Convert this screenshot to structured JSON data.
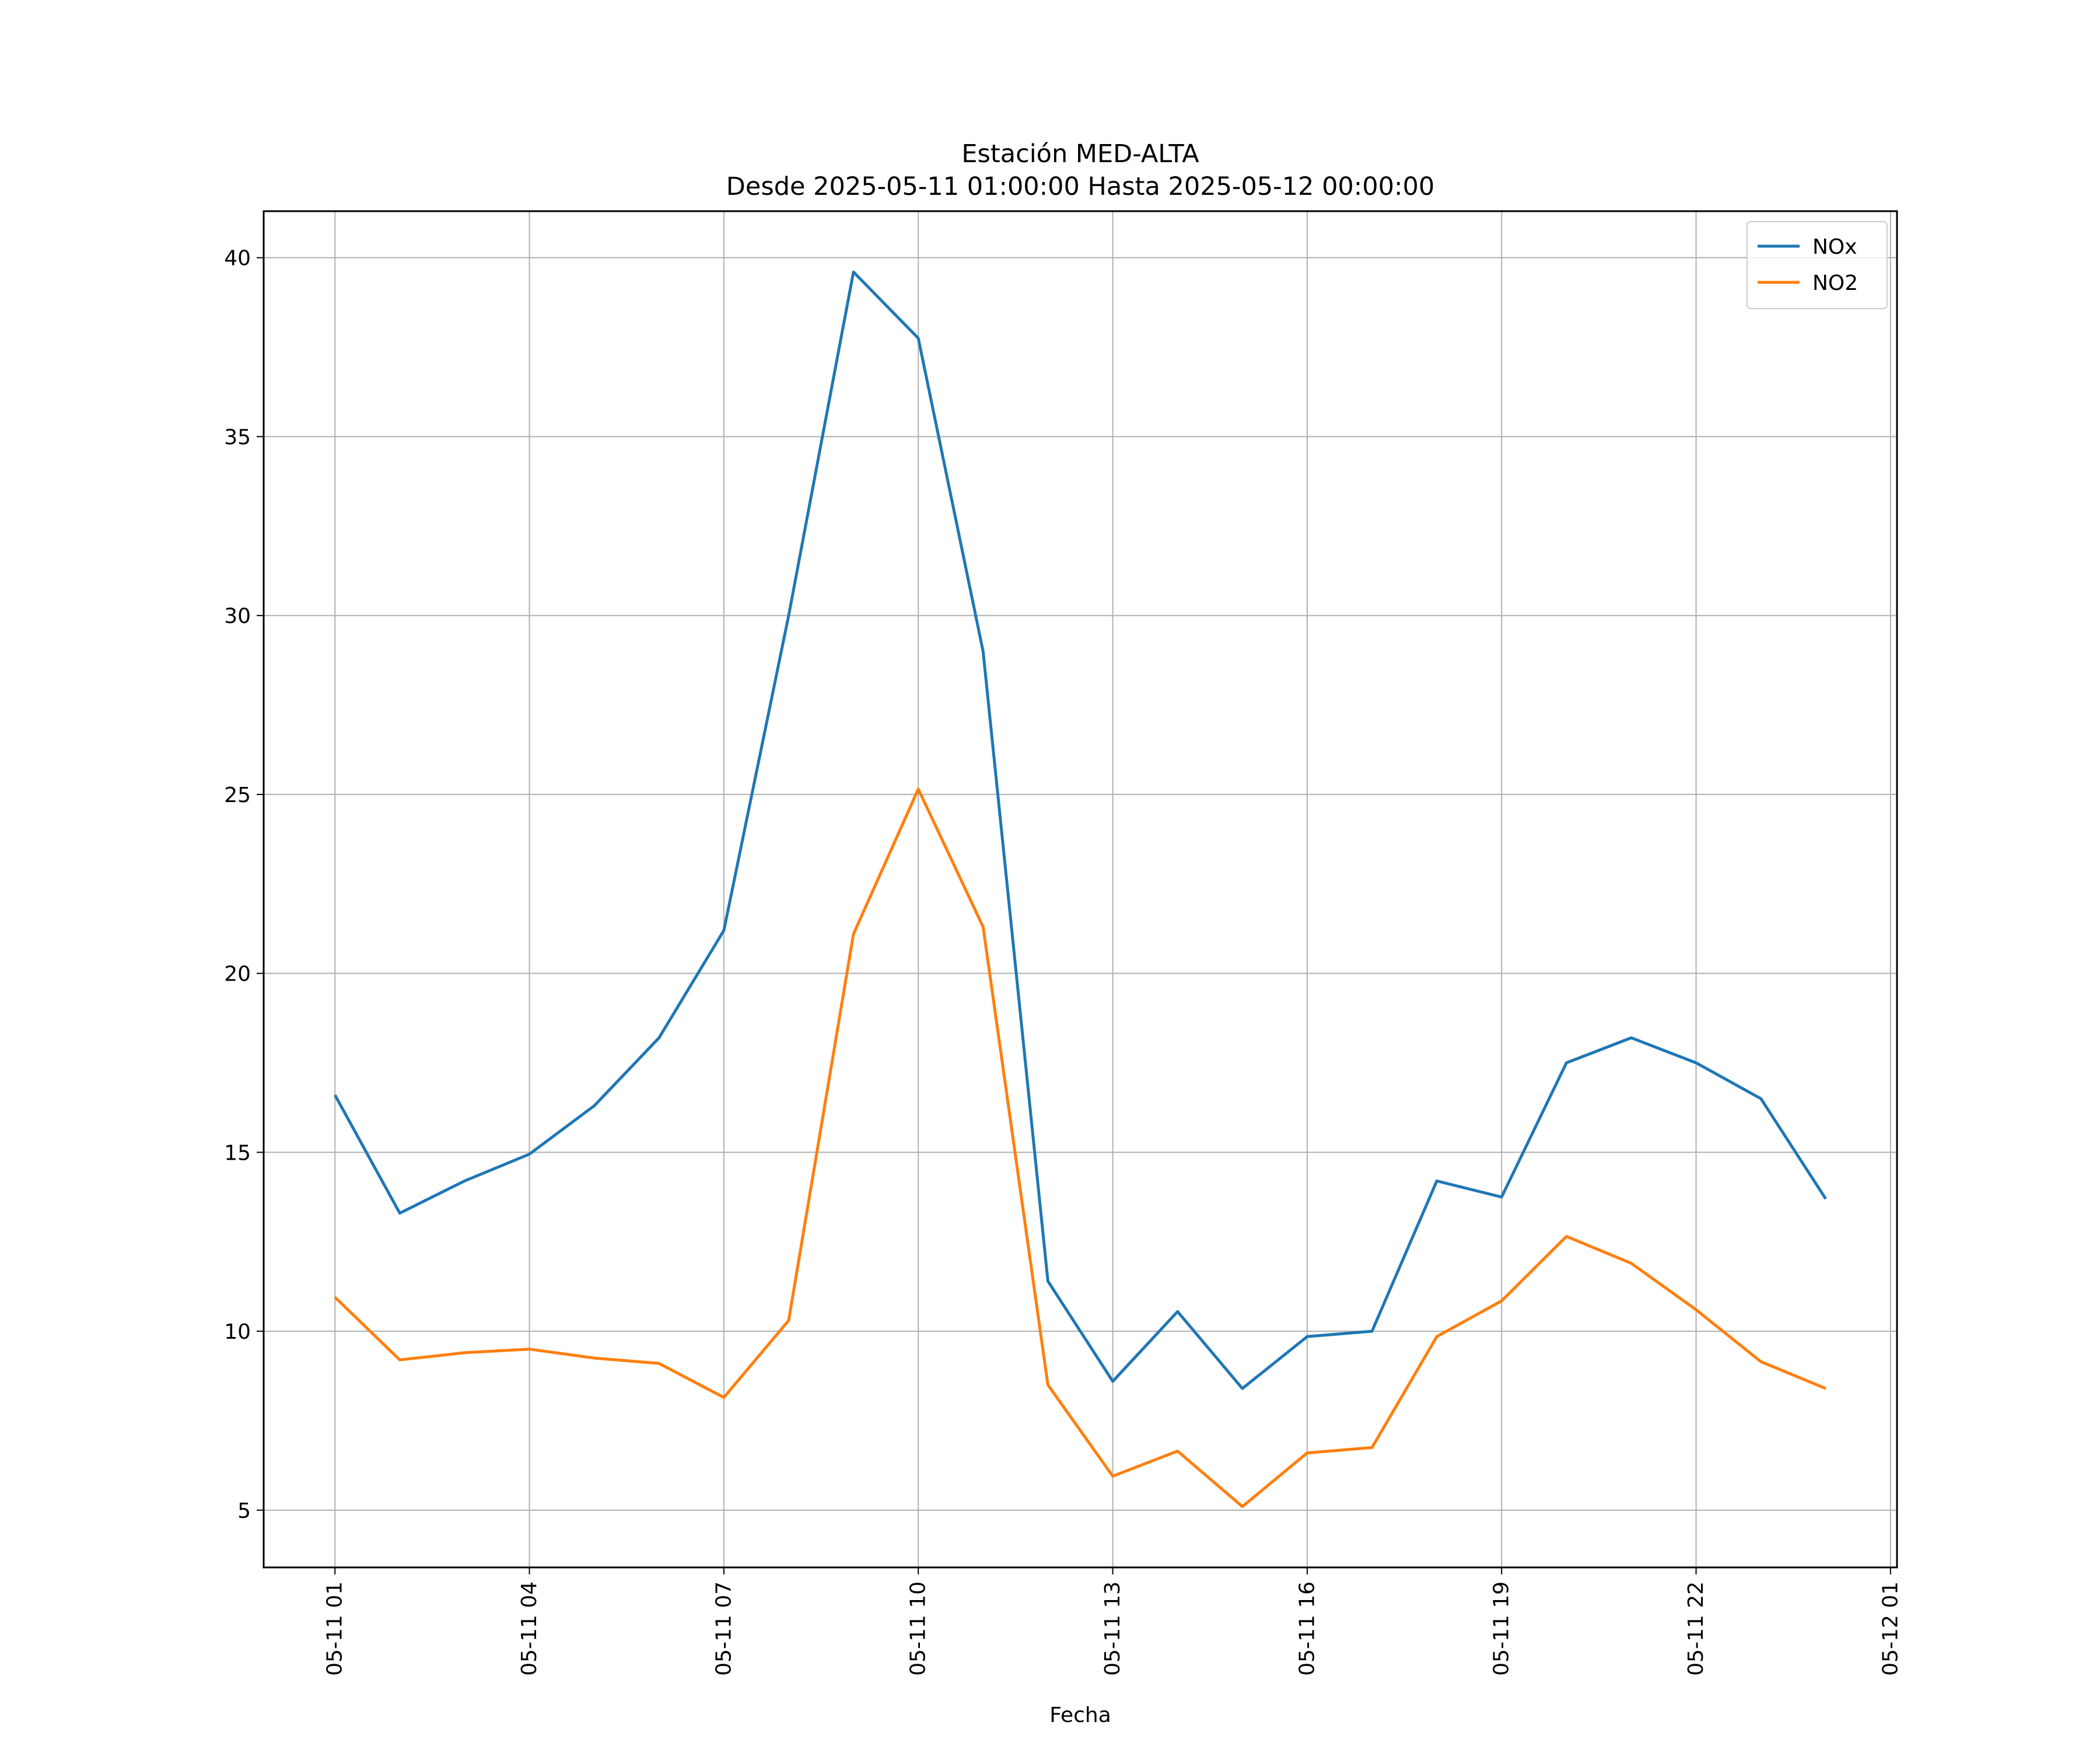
{
  "chart_data": {
    "type": "line",
    "title": "Estación MED-ALTA",
    "subtitle": "Desde 2025-05-11 01:00:00 Hasta 2025-05-12 00:00:00",
    "xlabel": "Fecha",
    "ylabel": "",
    "x": [
      "2025-05-11 01:00",
      "2025-05-11 02:00",
      "2025-05-11 03:00",
      "2025-05-11 04:00",
      "2025-05-11 05:00",
      "2025-05-11 06:00",
      "2025-05-11 07:00",
      "2025-05-11 08:00",
      "2025-05-11 09:00",
      "2025-05-11 10:00",
      "2025-05-11 11:00",
      "2025-05-11 12:00",
      "2025-05-11 13:00",
      "2025-05-11 14:00",
      "2025-05-11 15:00",
      "2025-05-11 16:00",
      "2025-05-11 17:00",
      "2025-05-11 18:00",
      "2025-05-11 19:00",
      "2025-05-11 20:00",
      "2025-05-11 21:00",
      "2025-05-11 22:00",
      "2025-05-11 23:00",
      "2025-05-12 00:00"
    ],
    "series": [
      {
        "name": "NOx",
        "color": "#1f77b4",
        "values": [
          16.6,
          13.3,
          14.2,
          14.95,
          16.3,
          18.2,
          21.2,
          30.0,
          39.6,
          37.75,
          29.0,
          11.4,
          8.6,
          10.55,
          8.4,
          9.85,
          10.0,
          14.2,
          13.75,
          17.5,
          18.2,
          17.5,
          16.5,
          13.7
        ]
      },
      {
        "name": "NO2",
        "color": "#ff7f0e",
        "values": [
          10.95,
          9.2,
          9.4,
          9.5,
          9.25,
          9.1,
          8.15,
          10.3,
          21.1,
          25.15,
          21.3,
          8.5,
          5.95,
          6.65,
          5.1,
          6.6,
          6.75,
          9.85,
          10.85,
          12.65,
          11.9,
          10.6,
          9.15,
          8.4
        ]
      }
    ],
    "x_ticks": [
      "05-11 01",
      "05-11 04",
      "05-11 07",
      "05-11 10",
      "05-11 13",
      "05-11 16",
      "05-11 19",
      "05-11 22",
      "05-12 01"
    ],
    "y_ticks": [
      "5",
      "10",
      "15",
      "20",
      "25",
      "30",
      "35",
      "40"
    ],
    "xlim": [
      "2025-05-10 23:54",
      "2025-05-12 01:06"
    ],
    "ylim": [
      3.4,
      41.3
    ],
    "grid": true,
    "legend": "top-right"
  }
}
